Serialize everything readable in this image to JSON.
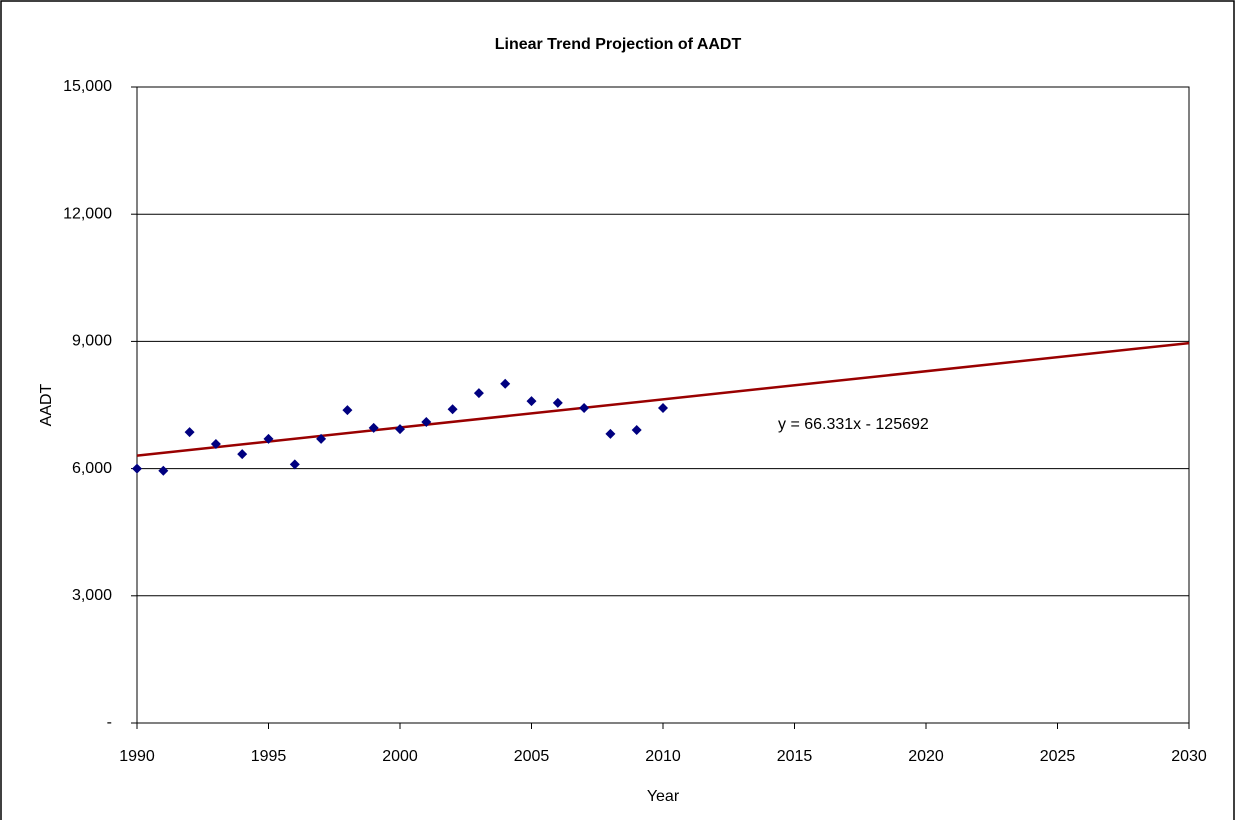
{
  "chart_data": {
    "type": "scatter",
    "title": "Linear Trend Projection of AADT",
    "x_label": "Year",
    "y_label": "AADT",
    "annotation": "y = 66.331x - 125692",
    "xlim": [
      1990,
      2030
    ],
    "xticks": [
      1990,
      1995,
      2000,
      2005,
      2010,
      2015,
      2020,
      2025,
      2030
    ],
    "ylim": [
      0,
      15000
    ],
    "yticks": [
      {
        "value": 0,
        "label": "-"
      },
      {
        "value": 3000,
        "label": "3,000"
      },
      {
        "value": 6000,
        "label": "6,000"
      },
      {
        "value": 9000,
        "label": "9,000"
      },
      {
        "value": 12000,
        "label": "12,000"
      },
      {
        "value": 15000,
        "label": "15,000"
      }
    ],
    "grid": true,
    "series": [
      {
        "color": "#000080",
        "x": [
          1990,
          1991,
          1992,
          1993,
          1994,
          1995,
          1996,
          1997,
          1998,
          1999,
          2000,
          2001,
          2002,
          2003,
          2004,
          2005,
          2006,
          2007,
          2008,
          2009,
          2010
        ],
        "values": [
          6000,
          5950,
          6860,
          6580,
          6340,
          6700,
          6100,
          6700,
          7380,
          6960,
          6930,
          7100,
          7400,
          7780,
          8000,
          7590,
          7550,
          7430,
          6820,
          6910,
          7430
        ]
      }
    ],
    "trendline": {
      "color": "#990000",
      "x": [
        1990,
        2030
      ],
      "values": [
        6306.7,
        8959.9
      ]
    }
  }
}
